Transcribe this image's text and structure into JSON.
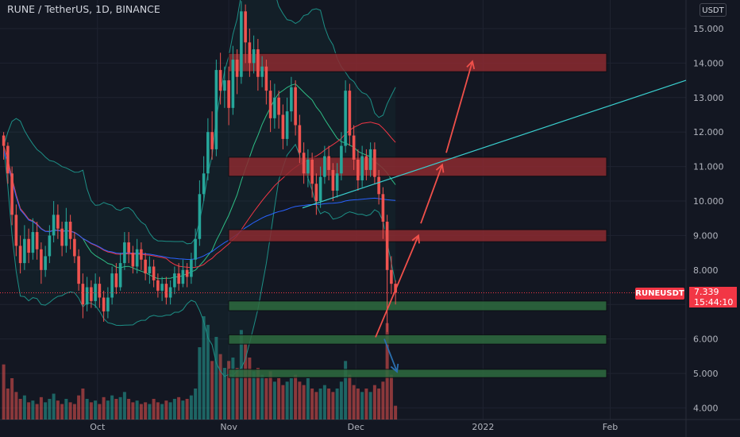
{
  "header": {
    "title": "RUNE / TetherUS, 1D, BINANCE",
    "currency_button": "USDT"
  },
  "colors": {
    "background": "#131722",
    "up": "#26a69a",
    "down": "#ef5350",
    "resistance_zone": "#8b2a30",
    "support_zone": "#2e6b3f",
    "trendline": "#3ad0d0",
    "arrow_up": "#f0504a",
    "arrow_down": "#2a6fb0",
    "ma_red": "#f23645",
    "ma_green": "#2ebd85",
    "ma_blue": "#2962ff",
    "band": "#1d8f86"
  },
  "price_label": {
    "symbol": "RUNEUSDT",
    "price": "7.339",
    "countdown": "15:44:10"
  },
  "chart_data": {
    "type": "candlestick",
    "y_axis": {
      "min": 3.7,
      "max": 15.8,
      "ticks": [
        "4.000",
        "5.000",
        "6.000",
        "7.000",
        "8.000",
        "9.000",
        "10.000",
        "11.000",
        "12.000",
        "13.000",
        "14.000",
        "15.000"
      ]
    },
    "x_axis": {
      "ticks": [
        "Oct",
        "Nov",
        "Dec",
        "2022",
        "Feb"
      ]
    },
    "current_price": 7.339,
    "zones": [
      {
        "kind": "resistance",
        "low": 13.75,
        "high": 14.28
      },
      {
        "kind": "resistance",
        "low": 10.72,
        "high": 11.27
      },
      {
        "kind": "resistance",
        "low": 8.82,
        "high": 9.17
      },
      {
        "kind": "support",
        "low": 6.82,
        "high": 7.1
      },
      {
        "kind": "support",
        "low": 5.85,
        "high": 6.12
      },
      {
        "kind": "support",
        "low": 4.88,
        "high": 5.12
      }
    ],
    "trendline": {
      "from_price": 9.8,
      "to_price": 13.5
    },
    "projection_arrows": [
      {
        "from_price": 6.05,
        "to_price": 9.0
      },
      {
        "from_price": 9.35,
        "to_price": 11.05
      },
      {
        "from_price": 11.4,
        "to_price": 14.05
      }
    ],
    "down_arrow": {
      "from_price": 6.0,
      "to_price": 5.05
    },
    "candles": [
      [
        11.9,
        11.6,
        12.0,
        11.2
      ],
      [
        11.6,
        10.8,
        11.7,
        10.5
      ],
      [
        10.8,
        9.6,
        11.0,
        9.3
      ],
      [
        9.6,
        8.7,
        9.9,
        8.4
      ],
      [
        8.7,
        8.2,
        9.0,
        7.9
      ],
      [
        8.2,
        8.9,
        9.3,
        8.0
      ],
      [
        8.9,
        8.5,
        9.2,
        8.2
      ],
      [
        8.5,
        9.1,
        9.5,
        8.3
      ],
      [
        9.1,
        8.6,
        9.4,
        8.3
      ],
      [
        8.6,
        8.0,
        8.8,
        7.6
      ],
      [
        8.0,
        8.4,
        8.7,
        7.8
      ],
      [
        8.4,
        9.0,
        9.3,
        8.2
      ],
      [
        9.0,
        9.6,
        10.0,
        8.8
      ],
      [
        9.6,
        9.2,
        9.9,
        8.9
      ],
      [
        9.2,
        8.7,
        9.4,
        8.4
      ],
      [
        8.7,
        9.4,
        9.8,
        8.5
      ],
      [
        9.4,
        8.9,
        9.6,
        8.6
      ],
      [
        8.9,
        8.4,
        9.1,
        8.2
      ],
      [
        8.4,
        7.6,
        8.6,
        7.4
      ],
      [
        7.6,
        7.0,
        7.9,
        6.6
      ],
      [
        7.0,
        7.5,
        7.8,
        6.8
      ],
      [
        7.5,
        7.1,
        7.7,
        6.9
      ],
      [
        7.1,
        7.6,
        7.9,
        6.9
      ],
      [
        7.6,
        7.2,
        7.8,
        6.9
      ],
      [
        7.2,
        6.8,
        7.4,
        6.5
      ],
      [
        6.8,
        7.2,
        7.5,
        6.6
      ],
      [
        7.2,
        7.9,
        8.1,
        7.0
      ],
      [
        7.9,
        7.5,
        8.2,
        7.3
      ],
      [
        7.5,
        8.2,
        8.5,
        7.4
      ],
      [
        8.2,
        8.8,
        9.1,
        8.0
      ],
      [
        8.8,
        8.5,
        9.1,
        8.2
      ],
      [
        8.5,
        8.1,
        8.7,
        7.9
      ],
      [
        8.1,
        8.6,
        8.9,
        7.9
      ],
      [
        8.6,
        8.3,
        8.8,
        8.0
      ],
      [
        8.3,
        7.9,
        8.5,
        7.7
      ],
      [
        7.9,
        8.1,
        8.4,
        7.6
      ],
      [
        8.1,
        7.7,
        8.3,
        7.5
      ],
      [
        7.7,
        7.4,
        7.9,
        7.2
      ],
      [
        7.4,
        7.6,
        7.8,
        7.1
      ],
      [
        7.6,
        7.2,
        7.8,
        7.0
      ],
      [
        7.2,
        7.5,
        7.7,
        7.0
      ],
      [
        7.5,
        7.9,
        8.1,
        7.3
      ],
      [
        7.9,
        7.6,
        8.2,
        7.4
      ],
      [
        7.6,
        8.0,
        8.3,
        7.5
      ],
      [
        8.0,
        7.8,
        8.2,
        7.5
      ],
      [
        7.8,
        8.3,
        8.5,
        7.6
      ],
      [
        8.3,
        8.9,
        9.2,
        8.1
      ],
      [
        8.9,
        10.2,
        10.6,
        8.7
      ],
      [
        10.2,
        10.8,
        11.3,
        10.0
      ],
      [
        10.8,
        12.0,
        12.4,
        10.6
      ],
      [
        12.0,
        11.5,
        12.6,
        11.2
      ],
      [
        11.5,
        13.8,
        14.1,
        11.3
      ],
      [
        13.8,
        13.2,
        14.3,
        12.8
      ],
      [
        13.2,
        13.5,
        13.9,
        12.7
      ],
      [
        13.5,
        12.7,
        13.9,
        12.2
      ],
      [
        12.7,
        14.1,
        14.5,
        12.5
      ],
      [
        14.1,
        13.6,
        14.4,
        13.1
      ],
      [
        13.6,
        15.5,
        15.8,
        13.4
      ],
      [
        15.5,
        14.6,
        15.7,
        14.0
      ],
      [
        14.6,
        14.0,
        15.0,
        13.6
      ],
      [
        14.0,
        14.4,
        14.8,
        13.7
      ],
      [
        14.4,
        13.6,
        14.7,
        13.2
      ],
      [
        13.6,
        13.9,
        14.2,
        13.3
      ],
      [
        13.9,
        13.2,
        14.1,
        12.8
      ],
      [
        13.2,
        12.4,
        13.5,
        12.0
      ],
      [
        12.4,
        13.0,
        13.4,
        12.1
      ],
      [
        13.0,
        12.5,
        13.2,
        12.1
      ],
      [
        12.5,
        11.8,
        12.8,
        11.5
      ],
      [
        11.8,
        12.6,
        13.0,
        11.6
      ],
      [
        12.6,
        13.3,
        13.6,
        12.3
      ],
      [
        13.3,
        12.2,
        13.5,
        11.9
      ],
      [
        12.2,
        11.4,
        12.5,
        11.1
      ],
      [
        11.4,
        10.8,
        11.7,
        10.5
      ],
      [
        10.8,
        11.2,
        11.5,
        10.4
      ],
      [
        11.2,
        10.5,
        11.4,
        10.1
      ],
      [
        10.5,
        10.0,
        10.8,
        9.6
      ],
      [
        10.0,
        10.7,
        11.0,
        9.8
      ],
      [
        10.7,
        11.3,
        11.6,
        10.5
      ],
      [
        11.3,
        10.9,
        11.6,
        10.6
      ],
      [
        10.9,
        10.3,
        11.1,
        10.0
      ],
      [
        10.3,
        10.8,
        11.1,
        10.1
      ],
      [
        10.8,
        11.6,
        12.0,
        10.6
      ],
      [
        11.6,
        13.2,
        13.5,
        11.4
      ],
      [
        13.2,
        11.9,
        13.4,
        11.6
      ],
      [
        11.9,
        11.2,
        12.2,
        10.9
      ],
      [
        11.2,
        10.6,
        11.5,
        10.3
      ],
      [
        10.6,
        11.3,
        11.6,
        10.4
      ],
      [
        11.3,
        10.9,
        11.5,
        10.6
      ],
      [
        10.9,
        11.5,
        11.7,
        10.7
      ],
      [
        11.5,
        10.7,
        11.7,
        10.5
      ],
      [
        10.7,
        10.2,
        10.9,
        9.9
      ],
      [
        10.2,
        9.4,
        10.4,
        8.9
      ],
      [
        9.4,
        8.0,
        9.6,
        6.2
      ],
      [
        8.0,
        7.6,
        8.4,
        7.3
      ],
      [
        7.6,
        7.34,
        7.7,
        7.0
      ]
    ],
    "volumes": [
      32,
      18,
      24,
      16,
      12,
      14,
      10,
      11,
      9,
      13,
      10,
      12,
      15,
      11,
      9,
      12,
      10,
      9,
      14,
      18,
      12,
      10,
      11,
      9,
      13,
      11,
      14,
      12,
      13,
      16,
      12,
      10,
      11,
      9,
      10,
      9,
      12,
      10,
      9,
      11,
      10,
      12,
      13,
      11,
      12,
      14,
      18,
      42,
      60,
      55,
      34,
      48,
      38,
      30,
      34,
      36,
      30,
      52,
      44,
      36,
      28,
      30,
      26,
      24,
      28,
      22,
      24,
      20,
      22,
      24,
      26,
      22,
      20,
      24,
      18,
      16,
      18,
      20,
      18,
      16,
      18,
      22,
      34,
      26,
      20,
      18,
      16,
      18,
      16,
      20,
      18,
      22,
      56,
      26,
      8
    ],
    "volume_labels_note": ""
  }
}
